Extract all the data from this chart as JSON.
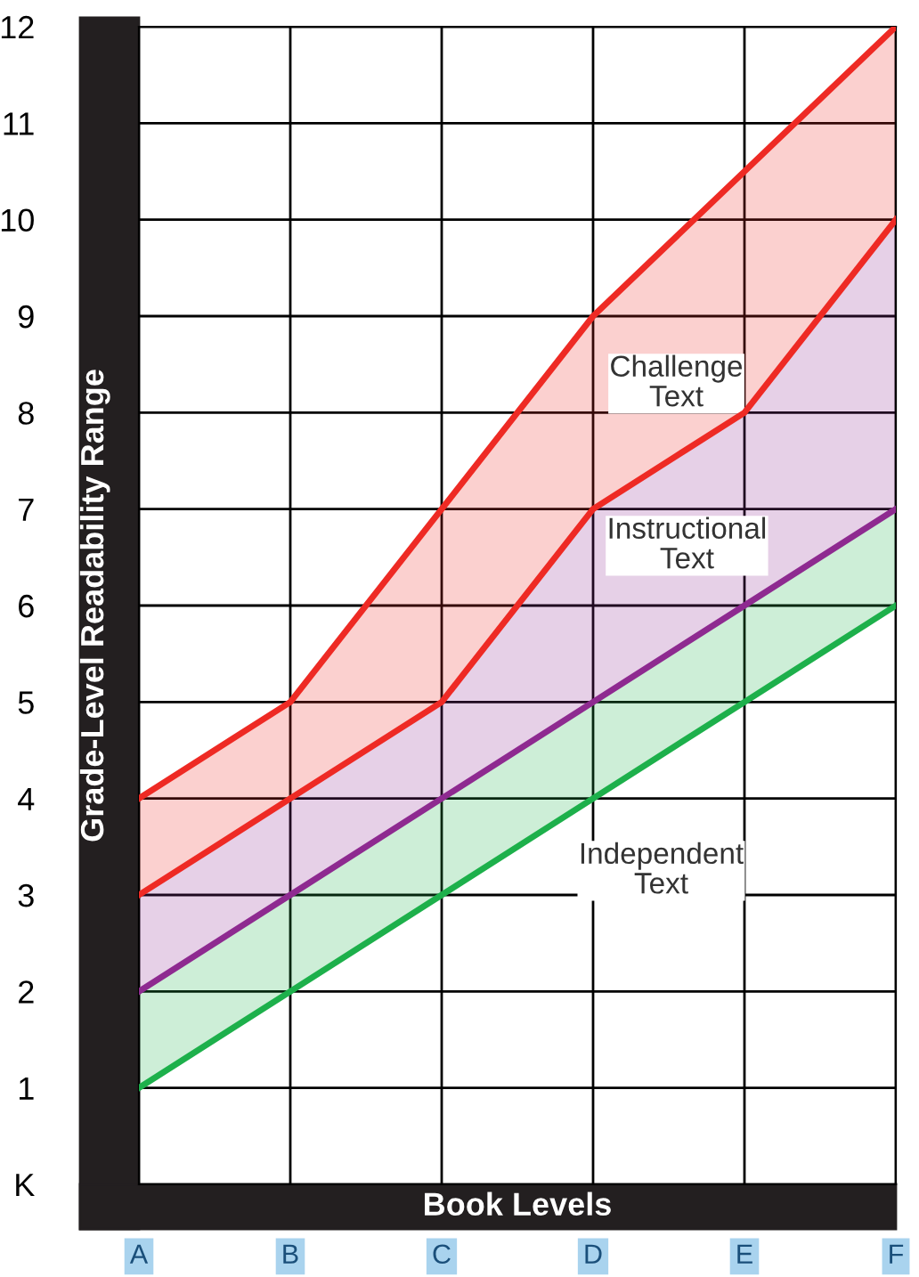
{
  "chart_data": {
    "type": "line",
    "xlabel": "Book Levels",
    "ylabel": "Grade-Level Readability Range",
    "categories": [
      "A",
      "B",
      "C",
      "D",
      "E",
      "F"
    ],
    "series": [
      {
        "color": "#1db04b",
        "values": [
          1,
          2,
          3,
          4,
          5,
          6
        ],
        "lower": [
          1,
          2,
          3,
          4,
          5,
          6
        ],
        "upper": [
          2,
          3,
          4,
          5,
          6,
          7
        ]
      },
      {
        "color": "#8e2a90",
        "values": [
          2,
          3,
          4,
          5,
          6,
          7
        ],
        "lower": [
          2,
          3,
          4,
          5,
          6,
          7
        ],
        "upper": [
          3,
          4,
          5,
          7,
          8,
          10
        ]
      },
      {
        "color": "#ee2a24",
        "values": [
          3,
          4,
          5,
          7,
          8,
          10
        ],
        "lower": [
          3,
          4,
          5,
          7,
          8,
          10
        ],
        "upper": [
          4,
          5,
          7,
          9,
          10.5,
          12
        ]
      },
      {
        "color": "#ee2a24",
        "values": [
          4,
          5,
          7,
          9,
          10.5,
          12
        ]
      }
    ],
    "annotations": [
      "Challenge\nText",
      "Instructional\nText",
      "Independent\nText"
    ],
    "ylim": [
      0,
      12
    ],
    "yticks": [
      {
        "value": 0,
        "label": "K"
      },
      1,
      2,
      3,
      4,
      5,
      6,
      7,
      8,
      9,
      10,
      11,
      12
    ],
    "grid": true,
    "marker": "none",
    "line_style": "solid"
  }
}
